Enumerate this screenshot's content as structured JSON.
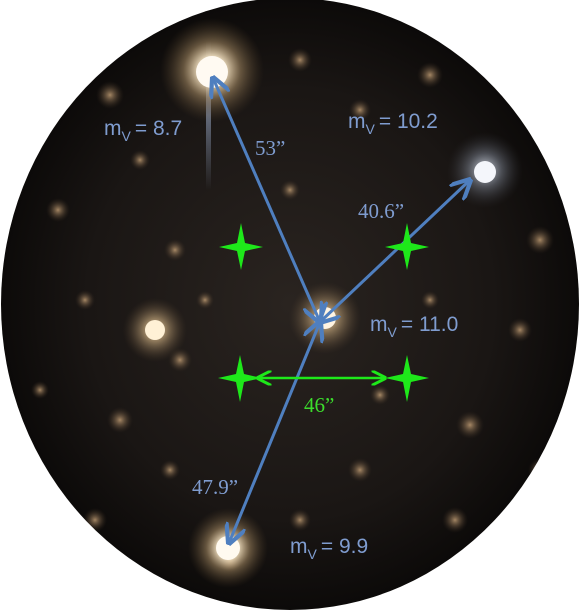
{
  "colors": {
    "arrow_blue": "#4f7fbf",
    "label_blue": "#7f9ccf",
    "marker_green": "#1ee81a",
    "label_green": "#3cdc2c",
    "sky": "#141210"
  },
  "stars": {
    "top_left": {
      "symbol": "m",
      "subscript": "V",
      "magnitude": "= 8.7"
    },
    "top_right": {
      "symbol": "m",
      "subscript": "V",
      "magnitude": "= 10.2"
    },
    "center": {
      "symbol": "m",
      "subscript": "V",
      "magnitude": "= 11.0"
    },
    "bottom": {
      "symbol": "m",
      "subscript": "V",
      "magnitude": "= 9.9"
    }
  },
  "separations": {
    "to_top_left": "53”",
    "to_top_right": "40.6”",
    "to_bottom": "47.9”",
    "scale_bar": "46”"
  },
  "icons": {
    "markers": "four-point-star-icon",
    "arrows": "double-arrow-icon"
  }
}
